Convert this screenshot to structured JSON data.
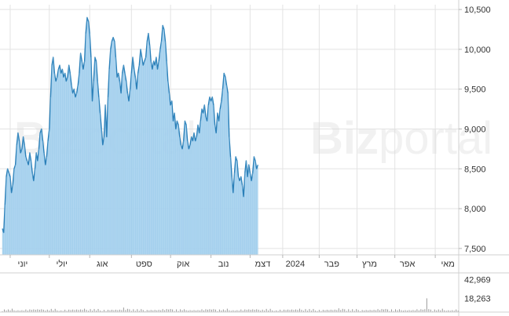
{
  "watermark": {
    "bold": "Biz",
    "light": "portal"
  },
  "colors": {
    "fill": "#a9d3ef",
    "line": "#2a7fb8",
    "volume": "#9a9a9a",
    "grid": "#e3e3e3"
  },
  "chart_data": [
    {
      "type": "area",
      "y_ticks": [
        {
          "value": 10500,
          "label": "10,500"
        },
        {
          "value": 10000,
          "label": "10,000"
        },
        {
          "value": 9500,
          "label": "9,500"
        },
        {
          "value": 9000,
          "label": "9,000"
        },
        {
          "value": 8500,
          "label": "8,500"
        },
        {
          "value": 8000,
          "label": "8,000"
        },
        {
          "value": 7500,
          "label": "7,500"
        }
      ],
      "ylim": [
        7420,
        10560
      ],
      "x_ticks": [
        {
          "label": "יוני",
          "x": 6
        },
        {
          "label": "יולי",
          "x": 36
        },
        {
          "label": "אוג",
          "x": 67
        },
        {
          "label": "ספט",
          "x": 99
        },
        {
          "label": "אוק",
          "x": 129
        },
        {
          "label": "נוב",
          "x": 160
        },
        {
          "label": "דצמ",
          "x": 190
        },
        {
          "label": "2024",
          "x": 215
        },
        {
          "label": "פבר",
          "x": 243
        },
        {
          "label": "מרץ",
          "x": 272
        },
        {
          "label": "אפר",
          "x": 301
        },
        {
          "label": "מאי",
          "x": 332
        }
      ],
      "xlim": [
        0,
        350
      ],
      "grid": true,
      "series": [
        {
          "points": [
            [
              0,
              7750
            ],
            [
              1,
              7700
            ],
            [
              2,
              8050
            ],
            [
              3,
              8400
            ],
            [
              4,
              8500
            ],
            [
              5,
              8450
            ],
            [
              6,
              8400
            ],
            [
              7,
              8200
            ],
            [
              8,
              8300
            ],
            [
              9,
              8500
            ],
            [
              10,
              8550
            ],
            [
              11,
              8800
            ],
            [
              12,
              8950
            ],
            [
              13,
              8850
            ],
            [
              14,
              8700
            ],
            [
              15,
              8750
            ],
            [
              16,
              8900
            ],
            [
              17,
              8800
            ],
            [
              18,
              8650
            ],
            [
              19,
              8600
            ],
            [
              20,
              8550
            ],
            [
              21,
              8700
            ],
            [
              22,
              8600
            ],
            [
              23,
              8450
            ],
            [
              24,
              8350
            ],
            [
              25,
              8500
            ],
            [
              26,
              8700
            ],
            [
              27,
              8600
            ],
            [
              28,
              8750
            ],
            [
              29,
              8950
            ],
            [
              30,
              9000
            ],
            [
              31,
              8850
            ],
            [
              32,
              8700
            ],
            [
              33,
              8550
            ],
            [
              34,
              8650
            ],
            [
              35,
              8850
            ],
            [
              36,
              9000
            ],
            [
              37,
              9400
            ],
            [
              38,
              9800
            ],
            [
              39,
              9900
            ],
            [
              40,
              9700
            ],
            [
              41,
              9600
            ],
            [
              42,
              9650
            ],
            [
              43,
              9750
            ],
            [
              44,
              9800
            ],
            [
              45,
              9700
            ],
            [
              46,
              9750
            ],
            [
              47,
              9650
            ],
            [
              48,
              9700
            ],
            [
              49,
              9600
            ],
            [
              50,
              9650
            ],
            [
              51,
              9800
            ],
            [
              52,
              9700
            ],
            [
              53,
              9550
            ],
            [
              54,
              9450
            ],
            [
              55,
              9500
            ],
            [
              56,
              9400
            ],
            [
              57,
              9450
            ],
            [
              58,
              9550
            ],
            [
              59,
              9700
            ],
            [
              60,
              9950
            ],
            [
              61,
              9850
            ],
            [
              62,
              9750
            ],
            [
              63,
              9850
            ],
            [
              64,
              10200
            ],
            [
              65,
              10400
            ],
            [
              66,
              10350
            ],
            [
              67,
              10200
            ],
            [
              68,
              9900
            ],
            [
              69,
              9350
            ],
            [
              70,
              9600
            ],
            [
              71,
              9900
            ],
            [
              72,
              9850
            ],
            [
              73,
              9600
            ],
            [
              74,
              9400
            ],
            [
              75,
              9200
            ],
            [
              76,
              9000
            ],
            [
              77,
              8800
            ],
            [
              78,
              8900
            ],
            [
              79,
              9300
            ],
            [
              80,
              8900
            ],
            [
              81,
              9400
            ],
            [
              82,
              9750
            ],
            [
              83,
              10000
            ],
            [
              84,
              10100
            ],
            [
              85,
              10150
            ],
            [
              86,
              10100
            ],
            [
              87,
              9900
            ],
            [
              88,
              9650
            ],
            [
              89,
              9700
            ],
            [
              90,
              9600
            ],
            [
              91,
              9450
            ],
            [
              92,
              9700
            ],
            [
              93,
              9800
            ],
            [
              94,
              9700
            ],
            [
              95,
              9600
            ],
            [
              96,
              9450
            ],
            [
              97,
              9350
            ],
            [
              98,
              9500
            ],
            [
              99,
              9700
            ],
            [
              100,
              9900
            ],
            [
              101,
              9750
            ],
            [
              102,
              9650
            ],
            [
              103,
              9500
            ],
            [
              104,
              9700
            ],
            [
              105,
              9800
            ],
            [
              106,
              10000
            ],
            [
              107,
              9900
            ],
            [
              108,
              9800
            ],
            [
              109,
              9850
            ],
            [
              110,
              9900
            ],
            [
              111,
              10100
            ],
            [
              112,
              10200
            ],
            [
              113,
              10050
            ],
            [
              114,
              9850
            ],
            [
              115,
              9750
            ],
            [
              116,
              9850
            ],
            [
              117,
              9800
            ],
            [
              118,
              9900
            ],
            [
              119,
              9750
            ],
            [
              120,
              9850
            ],
            [
              121,
              10000
            ],
            [
              122,
              10100
            ],
            [
              123,
              10300
            ],
            [
              124,
              10250
            ],
            [
              125,
              10100
            ],
            [
              126,
              9850
            ],
            [
              127,
              9600
            ],
            [
              128,
              9450
            ],
            [
              129,
              9300
            ],
            [
              130,
              9350
            ],
            [
              131,
              9100
            ],
            [
              132,
              9200
            ],
            [
              133,
              9000
            ],
            [
              134,
              9100
            ],
            [
              135,
              9050
            ],
            [
              136,
              8900
            ],
            [
              137,
              8800
            ],
            [
              138,
              8750
            ],
            [
              139,
              8850
            ],
            [
              140,
              9100
            ],
            [
              141,
              9050
            ],
            [
              142,
              8850
            ],
            [
              143,
              8750
            ],
            [
              144,
              8800
            ],
            [
              145,
              8900
            ],
            [
              146,
              8850
            ],
            [
              147,
              8950
            ],
            [
              148,
              8850
            ],
            [
              149,
              8900
            ],
            [
              150,
              9050
            ],
            [
              151,
              8950
            ],
            [
              152,
              9100
            ],
            [
              153,
              9250
            ],
            [
              154,
              9200
            ],
            [
              155,
              9300
            ],
            [
              156,
              9150
            ],
            [
              157,
              9100
            ],
            [
              158,
              9300
            ],
            [
              159,
              9400
            ],
            [
              160,
              9350
            ],
            [
              161,
              9400
            ],
            [
              162,
              9300
            ],
            [
              163,
              9050
            ],
            [
              164,
              8950
            ],
            [
              165,
              9200
            ],
            [
              166,
              9100
            ],
            [
              167,
              9250
            ],
            [
              168,
              9350
            ],
            [
              169,
              9500
            ],
            [
              170,
              9700
            ],
            [
              171,
              9650
            ],
            [
              172,
              9550
            ],
            [
              173,
              9450
            ],
            [
              174,
              8900
            ],
            [
              175,
              8650
            ],
            [
              176,
              8400
            ],
            [
              177,
              8200
            ],
            [
              178,
              8450
            ],
            [
              179,
              8650
            ],
            [
              180,
              8600
            ],
            [
              181,
              8400
            ],
            [
              182,
              8350
            ],
            [
              183,
              8400
            ],
            [
              184,
              8300
            ],
            [
              185,
              8150
            ],
            [
              186,
              8450
            ],
            [
              187,
              8600
            ],
            [
              188,
              8400
            ],
            [
              189,
              8550
            ],
            [
              190,
              8450
            ],
            [
              191,
              8350
            ],
            [
              192,
              8450
            ],
            [
              193,
              8650
            ],
            [
              194,
              8600
            ],
            [
              195,
              8500
            ],
            [
              196,
              8550
            ]
          ]
        }
      ]
    },
    {
      "type": "bar",
      "y_ticks": [
        {
          "value": 42969,
          "label": "42,969"
        },
        {
          "value": 18263,
          "label": "18,263"
        }
      ],
      "ylim": [
        0,
        50000
      ],
      "spikes": [
        {
          "x": 163,
          "value": 42969
        },
        {
          "x": 326,
          "value": 18263
        },
        {
          "x": 196,
          "value": 9000
        },
        {
          "x": 142,
          "value": 7000
        },
        {
          "x": 93,
          "value": 6000
        },
        {
          "x": 258,
          "value": 5000
        }
      ]
    }
  ]
}
